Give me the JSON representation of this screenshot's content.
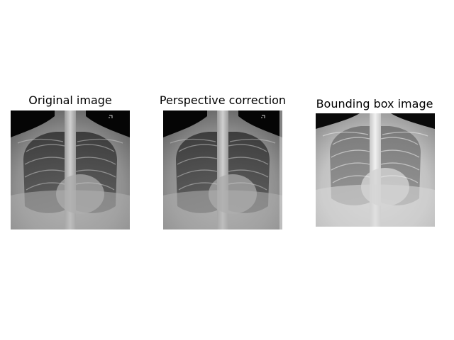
{
  "figure": {
    "panels": [
      {
        "title": "Original image",
        "image": "chest-xray-original"
      },
      {
        "title": "Perspective correction",
        "image": "chest-xray-perspective-corrected"
      },
      {
        "title": "Bounding box image",
        "image": "chest-xray-bounding-box-crop"
      }
    ]
  }
}
